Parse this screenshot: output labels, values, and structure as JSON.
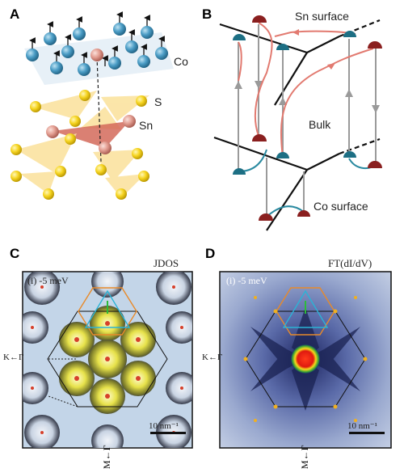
{
  "panels": {
    "A": {
      "letter": "A",
      "labels": {
        "co": "Co",
        "s": "S",
        "sn": "Sn"
      }
    },
    "B": {
      "letter": "B",
      "labels": {
        "sn_surface": "Sn surface",
        "bulk": "Bulk",
        "co_surface": "Co surface"
      }
    },
    "C": {
      "letter": "C",
      "title": "JDOS",
      "energy": "(i) -5 meV",
      "scale": "10 nm⁻¹",
      "axis_left": "K←Γ",
      "axis_bottom": "M←Γ"
    },
    "D": {
      "letter": "D",
      "title": "FT(dI/dV)",
      "energy": "(i) -5 meV",
      "scale": "10 nm⁻¹",
      "axis_left": "K←Γ",
      "axis_bottom": "M←Γ"
    }
  },
  "colors": {
    "co": "#3e8fb8",
    "sn": "#e09a8e",
    "s": "#f2cf16",
    "arrow_red": "#e27a70",
    "surface_red": "#8a1f1f",
    "surface_teal": "#1d7a8c",
    "gray_arrow": "#9a9a9a"
  }
}
